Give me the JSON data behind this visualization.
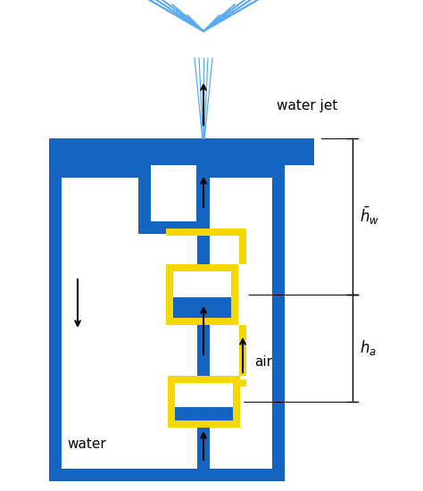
{
  "bg_color": "#ffffff",
  "blue": "#1565c0",
  "blue_light": "#5aabf0",
  "yellow": "#f5d800",
  "text_color": "#000000",
  "fig_width": 4.74,
  "fig_height": 5.5,
  "labels": {
    "water_jet": "water jet",
    "water": "water",
    "air": "air",
    "hw": "$\\bar{h}_w$",
    "ha": "$h_a$"
  }
}
